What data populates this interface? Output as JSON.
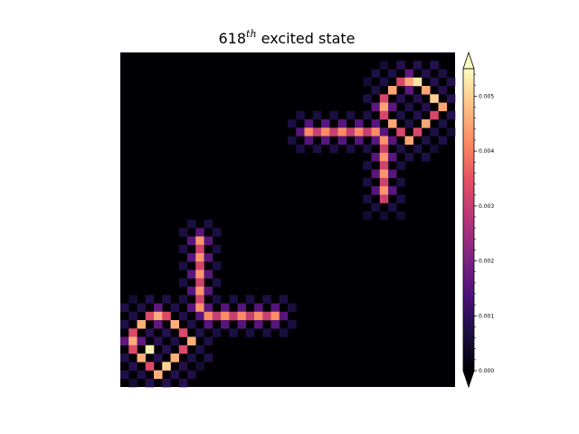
{
  "chart_data": {
    "type": "heatmap",
    "title": {
      "number": "618",
      "superscript": "th",
      "suffix": " excited state"
    },
    "colormap": "magma",
    "xlabel": "",
    "ylabel": "",
    "axes_visible": false,
    "grid": false,
    "grid_size": [
      40,
      40
    ],
    "colorbar": {
      "range": [
        0.0,
        0.0055
      ],
      "extend": "both",
      "ticks": [
        0.0,
        0.001,
        0.002,
        0.003,
        0.004,
        0.005
      ],
      "tick_labels": [
        "0.000",
        "0.001",
        "0.002",
        "0.003",
        "0.004",
        "0.005"
      ],
      "minor_ticks": true
    },
    "features": [
      {
        "kind": "segment",
        "from": [
          22,
          9
        ],
        "to": [
          30,
          9
        ],
        "value": 0.0042
      },
      {
        "kind": "segment",
        "from": [
          31,
          10
        ],
        "to": [
          31,
          17
        ],
        "value": 0.0043
      },
      {
        "kind": "segment",
        "from": [
          10,
          31
        ],
        "to": [
          18,
          31
        ],
        "value": 0.0042
      },
      {
        "kind": "segment",
        "from": [
          9,
          22
        ],
        "to": [
          9,
          30
        ],
        "value": 0.0043
      },
      {
        "kind": "ring",
        "center": [
          34,
          6
        ],
        "radius": 3.5,
        "value": 0.0045
      },
      {
        "kind": "ring",
        "center": [
          4,
          34
        ],
        "radius": 3.5,
        "value": 0.0046
      },
      {
        "kind": "blob",
        "center": [
          35,
          3
        ],
        "value": 0.0052
      },
      {
        "kind": "blob",
        "center": [
          37,
          5
        ],
        "value": 0.005
      },
      {
        "kind": "blob",
        "center": [
          3,
          35
        ],
        "value": 0.0053
      },
      {
        "kind": "blob",
        "center": [
          5,
          37
        ],
        "value": 0.005
      }
    ]
  }
}
